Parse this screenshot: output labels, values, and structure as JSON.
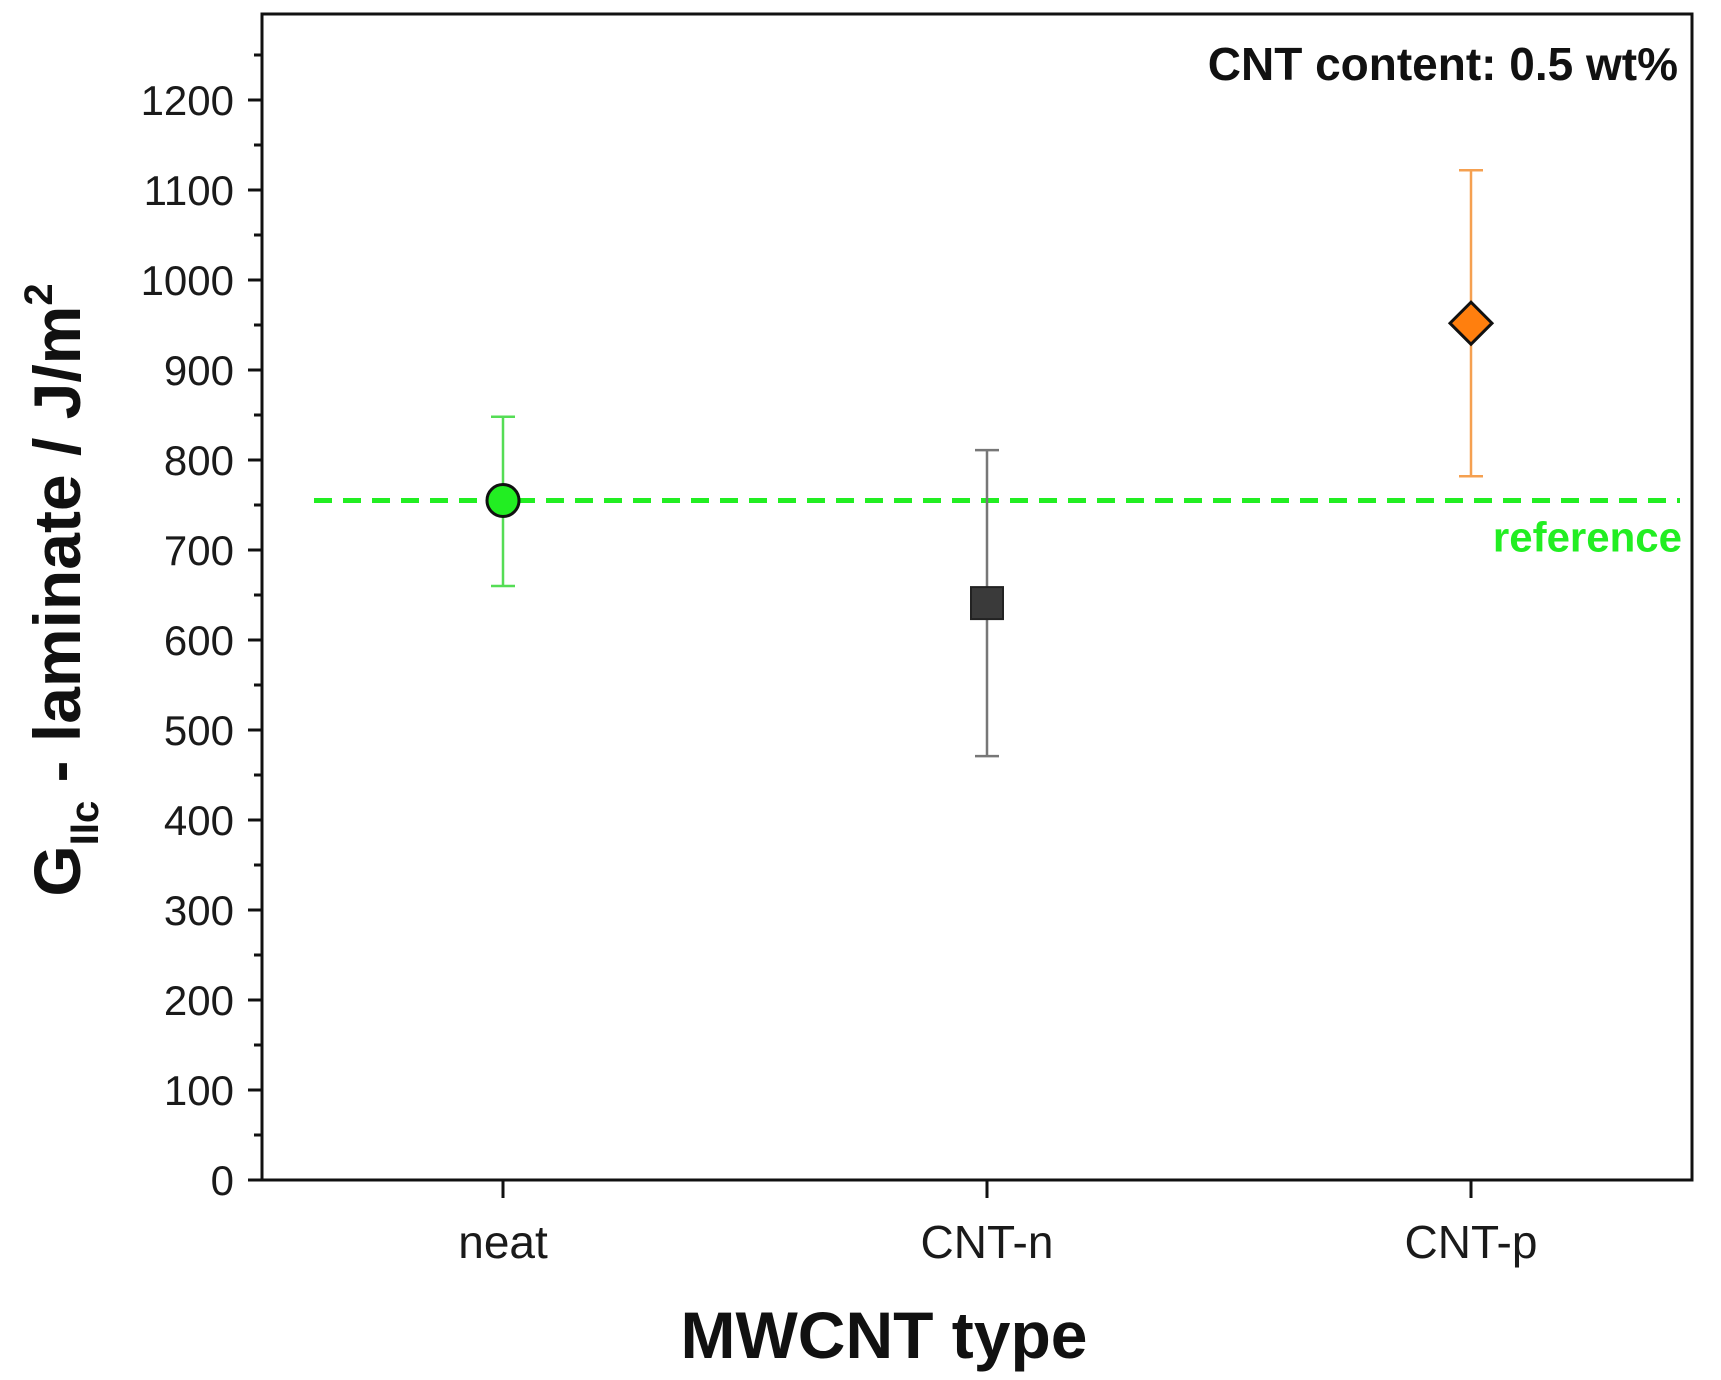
{
  "chart_data": {
    "type": "scatter",
    "title": "",
    "xlabel": "MWCNT type",
    "ylabel": {
      "main": "G",
      "subscript": "IIc",
      "rest": " - laminate / J/m",
      "superscript": "2"
    },
    "categories": [
      "neat",
      "CNT-n",
      "CNT-p"
    ],
    "ylim": [
      0,
      1300
    ],
    "yticks": [
      0,
      100,
      200,
      300,
      400,
      500,
      600,
      700,
      800,
      900,
      1000,
      1100,
      1200
    ],
    "grid": false,
    "points": [
      {
        "category": "neat",
        "value": 755,
        "err_low": 660,
        "err_high": 848,
        "marker": "circle",
        "color": "#22ee22",
        "error_color": "#55dd55"
      },
      {
        "category": "CNT-n",
        "value": 641,
        "err_low": 471,
        "err_high": 811,
        "marker": "square",
        "color": "#3a3a3a",
        "error_color": "#777777"
      },
      {
        "category": "CNT-p",
        "value": 952,
        "err_low": 782,
        "err_high": 1122,
        "marker": "diamond",
        "color": "#ff7f0e",
        "error_color": "#f5a050"
      }
    ],
    "reference_line": {
      "value": 755,
      "label": "reference",
      "color": "#22ee22"
    },
    "annotation": "CNT content: 0.5 wt%"
  }
}
